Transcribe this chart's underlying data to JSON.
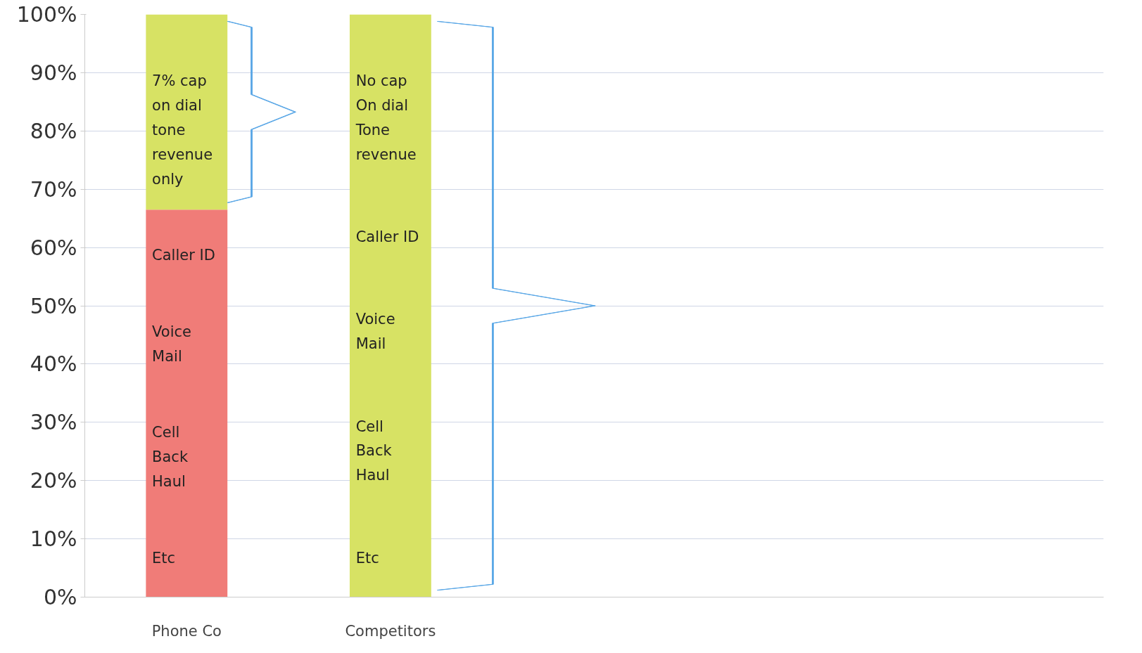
{
  "chart_data": {
    "type": "bar",
    "stacked": true,
    "categories": [
      "Phone Co",
      "Competitors",
      null,
      null,
      null
    ],
    "series": [
      {
        "color": "#f07c78",
        "values": [
          66.5,
          null,
          null,
          null,
          null
        ]
      },
      {
        "color": "#d7e264",
        "values": [
          33.5,
          100,
          null,
          null,
          null
        ]
      }
    ],
    "ylim": [
      0,
      100
    ],
    "yticks": [
      {
        "value": 0,
        "label": "0%"
      },
      {
        "value": 10,
        "label": "10%"
      },
      {
        "value": 20,
        "label": "20%"
      },
      {
        "value": 30,
        "label": "30%"
      },
      {
        "value": 40,
        "label": "40%"
      },
      {
        "value": 50,
        "label": "50%"
      },
      {
        "value": 60,
        "label": "60%"
      },
      {
        "value": 70,
        "label": "70%"
      },
      {
        "value": 80,
        "label": "80%"
      },
      {
        "value": 90,
        "label": "90%"
      },
      {
        "value": 100,
        "label": "100%"
      }
    ],
    "grid": "y",
    "annotations": [
      "7% cap\non dial\ntone\nrevenue\nonly",
      "Caller ID",
      "Voice\nMail",
      "Cell\nBack\nHaul",
      "Etc",
      "No cap\nOn dial\nTone\nrevenue",
      "Caller ID",
      "Voice\nMail",
      "Cell\nBack\nHaul",
      "Etc"
    ]
  }
}
